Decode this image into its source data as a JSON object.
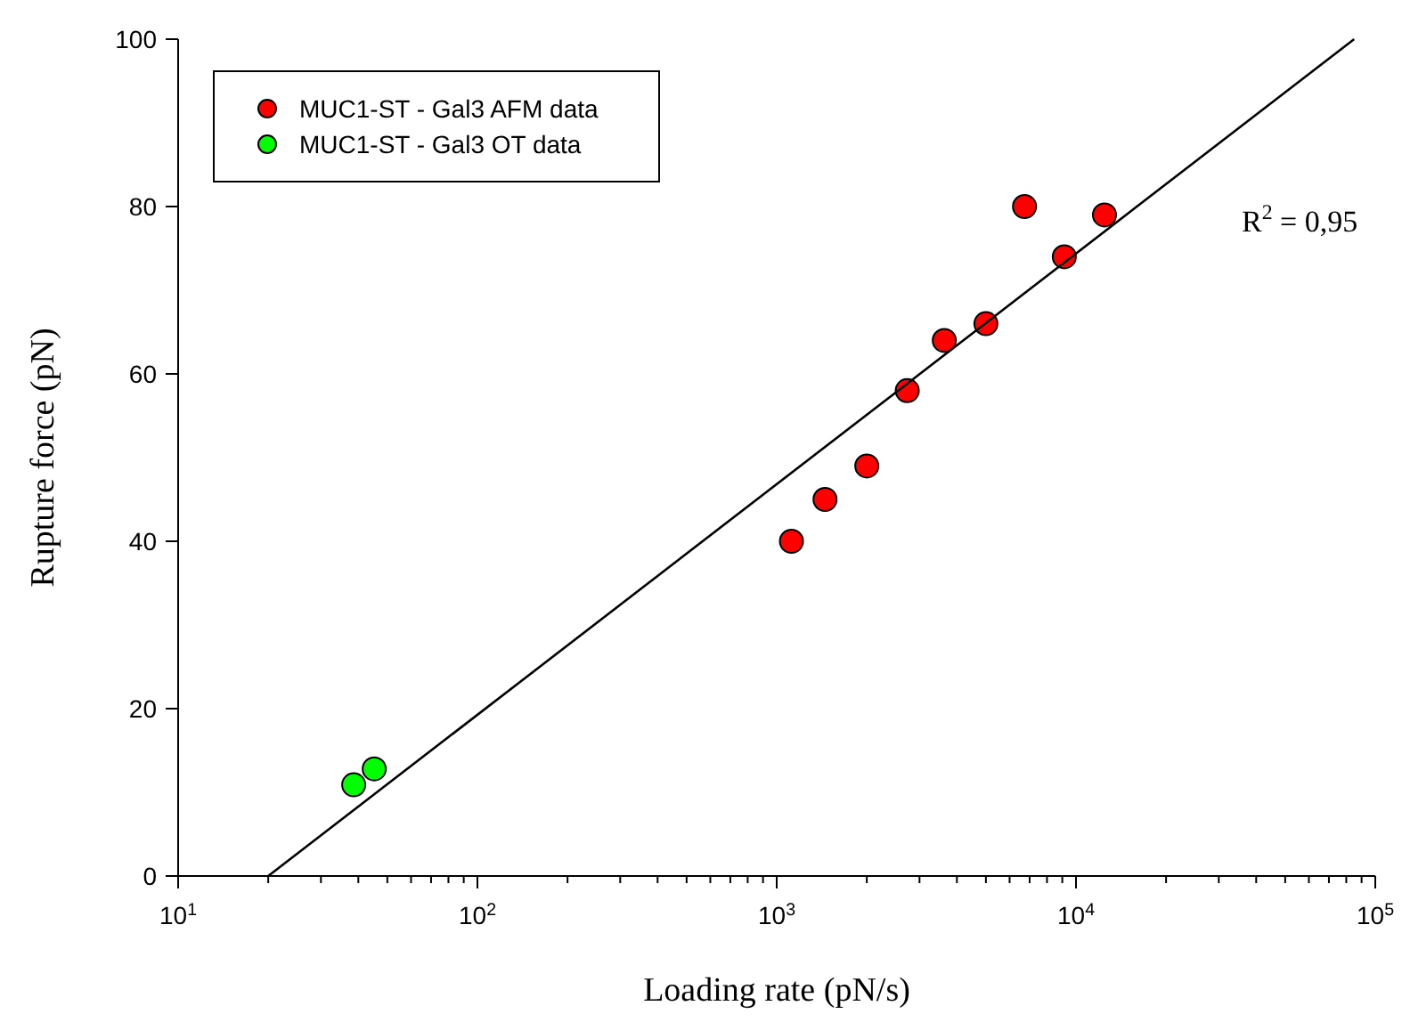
{
  "chart_data": {
    "type": "scatter",
    "xlabel": "Loading rate (pN/s)",
    "ylabel": "Rupture force (pN)",
    "log": "x",
    "xlim": [
      10,
      100000
    ],
    "ylim": [
      0,
      100
    ],
    "xticks": [
      {
        "value": 10,
        "label": "10$^{1}$"
      },
      {
        "value": 20,
        "label": null
      },
      {
        "value": 30,
        "label": null
      },
      {
        "value": 40,
        "label": null
      },
      {
        "value": 50,
        "label": null
      },
      {
        "value": 60,
        "label": null
      },
      {
        "value": 70,
        "label": null
      },
      {
        "value": 80,
        "label": null
      },
      {
        "value": 90,
        "label": null
      },
      {
        "value": 100,
        "label": "10$^{2}$"
      },
      {
        "value": 200,
        "label": null
      },
      {
        "value": 300,
        "label": null
      },
      {
        "value": 400,
        "label": null
      },
      {
        "value": 500,
        "label": null
      },
      {
        "value": 600,
        "label": null
      },
      {
        "value": 700,
        "label": null
      },
      {
        "value": 800,
        "label": null
      },
      {
        "value": 900,
        "label": null
      },
      {
        "value": 1000,
        "label": "10$^{3}$"
      },
      {
        "value": 2000,
        "label": null
      },
      {
        "value": 3000,
        "label": null
      },
      {
        "value": 4000,
        "label": null
      },
      {
        "value": 5000,
        "label": null
      },
      {
        "value": 6000,
        "label": null
      },
      {
        "value": 7000,
        "label": null
      },
      {
        "value": 8000,
        "label": null
      },
      {
        "value": 9000,
        "label": null
      },
      {
        "value": 10000,
        "label": "10$^{4}$"
      },
      {
        "value": 20000,
        "label": null
      },
      {
        "value": 30000,
        "label": null
      },
      {
        "value": 40000,
        "label": null
      },
      {
        "value": 50000,
        "label": null
      },
      {
        "value": 60000,
        "label": null
      },
      {
        "value": 70000,
        "label": null
      },
      {
        "value": 80000,
        "label": null
      },
      {
        "value": 90000,
        "label": null
      },
      {
        "value": 100000,
        "label": "10$^{5}$"
      }
    ],
    "yticks": [
      0,
      20,
      40,
      60,
      80,
      100
    ],
    "legend": "top left",
    "marker": "circle",
    "grid": false,
    "annotations": [
      "R$^{2}$ = 0,95"
    ],
    "series": [
      {
        "name": "MUC1-ST - Gal3 AFM data",
        "color": "#ff0000",
        "x": [
          1120,
          1450,
          2000,
          2730,
          3630,
          5000,
          6730,
          9140,
          12450
        ],
        "values": [
          40,
          45,
          49,
          58,
          64,
          66,
          80,
          74,
          79
        ]
      },
      {
        "name": "MUC1-ST - Gal3 OT data",
        "color": "#00ff00",
        "x": [
          38.6,
          45.2
        ],
        "values": [
          10.9,
          12.8
        ]
      },
      {
        "type": "line",
        "color": "#000000",
        "marker": "none",
        "x": [
          20,
          85000
        ],
        "values": [
          0,
          100
        ]
      }
    ]
  }
}
